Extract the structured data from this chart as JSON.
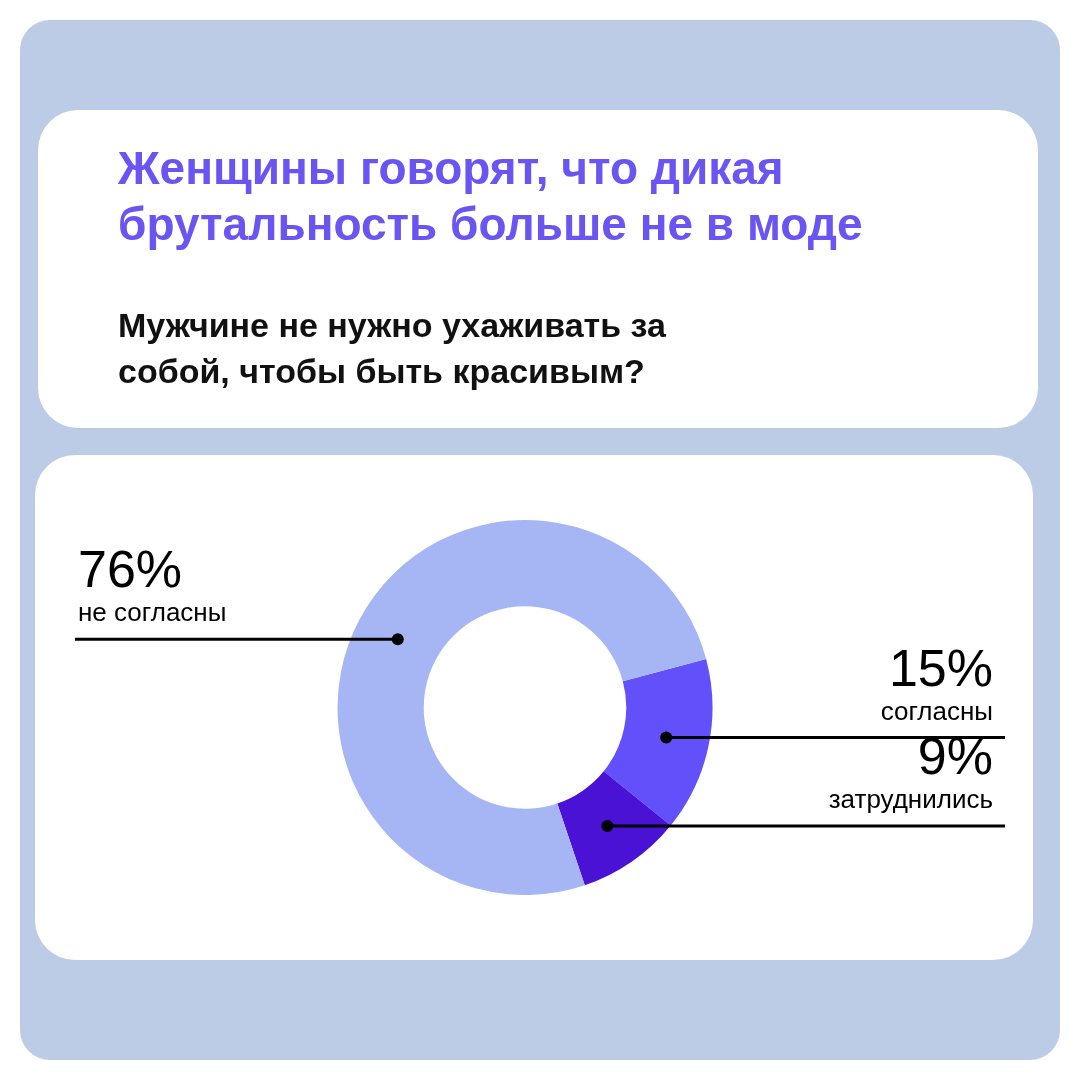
{
  "chart_data": {
    "type": "donut",
    "title": "Женщины говорят, что дикая брутальность больше не в моде",
    "subtitle": "Мужчине не нужно ухаживать за собой, чтобы быть красивым?",
    "categories": [
      "согласны",
      "затруднились",
      "не согласны"
    ],
    "values": [
      15,
      9,
      76
    ],
    "value_labels": [
      "15%",
      "9%",
      "76%"
    ],
    "colors": [
      "#6250fb",
      "#4a12d4",
      "#a6b6f4"
    ],
    "legend": false
  }
}
